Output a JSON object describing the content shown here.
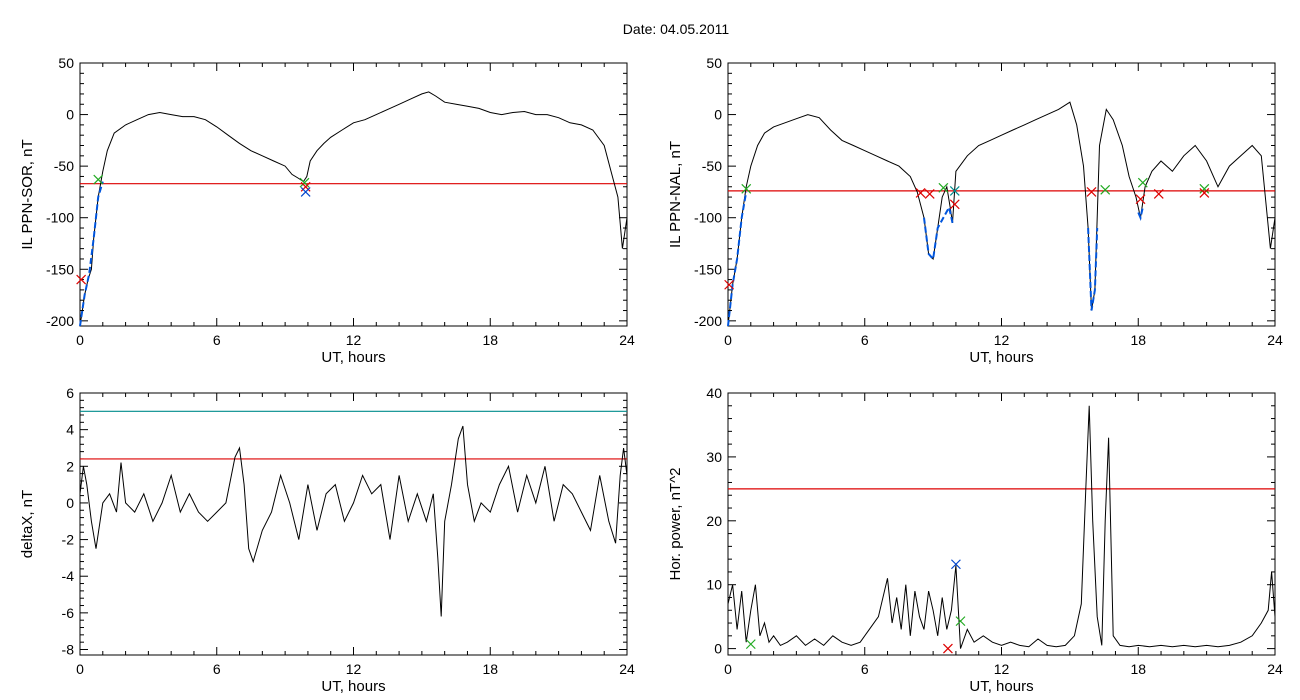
{
  "figure": {
    "title": "Date:  04.05.2011"
  },
  "colors": {
    "trace": "#000000",
    "threshold": "#dd0000",
    "upper_threshold": "#008b8b",
    "highlight": "#0055dd",
    "marker_red": "#dd0000",
    "marker_green": "#22aa22",
    "marker_blue": "#0044cc",
    "marker_teal": "#008b8b"
  },
  "chart_data": [
    {
      "type": "line",
      "xlabel": "UT, hours",
      "ylabel": "IL PPN-SOR, nT",
      "xlim": [
        0,
        24
      ],
      "ylim": [
        -205,
        50
      ],
      "xticks": [
        0,
        6,
        12,
        18,
        24
      ],
      "yticks": [
        -200,
        -150,
        -100,
        -50,
        0,
        50
      ],
      "series": [
        {
          "x": [
            0,
            0.1,
            0.2,
            0.35,
            0.5,
            0.6,
            0.8,
            1.0,
            1.2,
            1.5,
            2.0,
            2.5,
            3.0,
            3.5,
            4.0,
            4.5,
            5.0,
            5.5,
            6.0,
            6.5,
            7.0,
            7.5,
            8.0,
            8.5,
            9.0,
            9.3,
            9.6,
            9.8,
            9.95,
            10.1,
            10.4,
            10.7,
            11.0,
            11.5,
            12.0,
            12.5,
            13.0,
            13.5,
            14.0,
            14.5,
            15.0,
            15.3,
            15.6,
            16.0,
            16.5,
            17.0,
            17.5,
            18.0,
            18.5,
            19.0,
            19.5,
            20.0,
            20.5,
            21.0,
            21.5,
            22.0,
            22.5,
            23.0,
            23.3,
            23.6,
            23.8,
            24.0
          ],
          "y": [
            -205,
            -190,
            -175,
            -160,
            -150,
            -120,
            -80,
            -55,
            -35,
            -18,
            -10,
            -5,
            0,
            2,
            0,
            -2,
            -2,
            -5,
            -12,
            -20,
            -28,
            -35,
            -40,
            -45,
            -50,
            -58,
            -62,
            -65,
            -60,
            -45,
            -35,
            -28,
            -22,
            -15,
            -8,
            -5,
            0,
            5,
            10,
            15,
            20,
            22,
            18,
            12,
            10,
            8,
            6,
            2,
            0,
            2,
            3,
            0,
            0,
            -3,
            -8,
            -10,
            -15,
            -30,
            -55,
            -80,
            -130,
            -100
          ]
        }
      ],
      "highlight": {
        "x": [
          0,
          0.2,
          0.4,
          0.6,
          0.8,
          1.0
        ],
        "y": [
          -205,
          -175,
          -155,
          -120,
          -80,
          -65
        ]
      },
      "threshold": -67,
      "markers": [
        {
          "x": 0.8,
          "y": -63,
          "color": "green"
        },
        {
          "x": 9.85,
          "y": -66,
          "color": "green"
        },
        {
          "x": 9.9,
          "y": -70,
          "color": "red"
        },
        {
          "x": 9.9,
          "y": -75,
          "color": "blue"
        },
        {
          "x": 0.05,
          "y": -160,
          "color": "red"
        }
      ]
    },
    {
      "type": "line",
      "xlabel": "UT, hours",
      "ylabel": "IL PPN-NAL, nT",
      "xlim": [
        0,
        24
      ],
      "ylim": [
        -205,
        50
      ],
      "xticks": [
        0,
        6,
        12,
        18,
        24
      ],
      "yticks": [
        -200,
        -150,
        -100,
        -50,
        0,
        50
      ],
      "series": [
        {
          "x": [
            0,
            0.2,
            0.4,
            0.6,
            0.8,
            1.0,
            1.3,
            1.6,
            2.0,
            2.5,
            3.0,
            3.5,
            4.0,
            4.5,
            5.0,
            5.5,
            6.0,
            6.5,
            7.0,
            7.5,
            8.0,
            8.3,
            8.6,
            8.8,
            9.0,
            9.2,
            9.4,
            9.6,
            9.75,
            9.85,
            10.0,
            10.5,
            11.0,
            11.5,
            12.0,
            12.5,
            13.0,
            13.5,
            14.0,
            14.5,
            15.0,
            15.3,
            15.6,
            15.8,
            15.95,
            16.1,
            16.3,
            16.6,
            16.9,
            17.3,
            17.6,
            17.9,
            18.1,
            18.3,
            18.6,
            19.0,
            19.5,
            20.0,
            20.5,
            21.0,
            21.5,
            22.0,
            22.5,
            23.0,
            23.4,
            23.8,
            24.0
          ],
          "y": [
            -205,
            -165,
            -140,
            -100,
            -70,
            -50,
            -30,
            -18,
            -12,
            -8,
            -4,
            0,
            -3,
            -15,
            -25,
            -30,
            -35,
            -40,
            -45,
            -50,
            -60,
            -75,
            -100,
            -135,
            -140,
            -110,
            -80,
            -70,
            -90,
            -105,
            -55,
            -40,
            -30,
            -25,
            -20,
            -15,
            -10,
            -5,
            0,
            5,
            12,
            -10,
            -50,
            -110,
            -190,
            -170,
            -30,
            5,
            -5,
            -30,
            -60,
            -80,
            -100,
            -70,
            -55,
            -45,
            -55,
            -40,
            -30,
            -45,
            -70,
            -50,
            -40,
            -30,
            -40,
            -130,
            -100
          ]
        }
      ],
      "highlight": {
        "x": [
          0,
          0.2,
          0.4,
          0.6,
          0.8,
          8.6,
          8.8,
          9.0,
          9.2,
          9.7,
          9.8,
          9.85,
          15.8,
          15.95,
          16.1,
          16.2,
          18.0,
          18.1,
          18.2
        ],
        "y": [
          -205,
          -165,
          -140,
          -100,
          -75,
          -100,
          -135,
          -140,
          -110,
          -90,
          -100,
          -105,
          -110,
          -190,
          -170,
          -110,
          -95,
          -100,
          -90
        ]
      },
      "threshold": -74,
      "markers": [
        {
          "x": 0.8,
          "y": -72,
          "color": "green"
        },
        {
          "x": 0.05,
          "y": -165,
          "color": "red"
        },
        {
          "x": 8.45,
          "y": -76,
          "color": "red"
        },
        {
          "x": 8.85,
          "y": -77,
          "color": "red"
        },
        {
          "x": 9.45,
          "y": -71,
          "color": "green"
        },
        {
          "x": 9.95,
          "y": -87,
          "color": "red"
        },
        {
          "x": 9.95,
          "y": -74,
          "color": "teal"
        },
        {
          "x": 15.95,
          "y": -75,
          "color": "red"
        },
        {
          "x": 16.55,
          "y": -73,
          "color": "green"
        },
        {
          "x": 18.1,
          "y": -82,
          "color": "red"
        },
        {
          "x": 18.9,
          "y": -77,
          "color": "red"
        },
        {
          "x": 20.9,
          "y": -72,
          "color": "green"
        },
        {
          "x": 20.9,
          "y": -76,
          "color": "red"
        },
        {
          "x": 18.2,
          "y": -66,
          "color": "green"
        }
      ]
    },
    {
      "type": "line",
      "xlabel": "UT, hours",
      "ylabel": "deltaX, nT",
      "xlim": [
        0,
        24
      ],
      "ylim": [
        -8.3,
        6
      ],
      "xticks": [
        0,
        6,
        12,
        18,
        24
      ],
      "yticks": [
        -8,
        -6,
        -4,
        -2,
        0,
        2,
        4,
        6
      ],
      "series": [
        {
          "x": [
            0,
            0.15,
            0.3,
            0.5,
            0.7,
            1.0,
            1.3,
            1.6,
            1.8,
            2.0,
            2.4,
            2.8,
            3.2,
            3.6,
            4.0,
            4.4,
            4.8,
            5.2,
            5.6,
            6.0,
            6.4,
            6.8,
            7.0,
            7.2,
            7.4,
            7.6,
            8.0,
            8.4,
            8.8,
            9.2,
            9.6,
            10.0,
            10.4,
            10.8,
            11.2,
            11.6,
            12.0,
            12.4,
            12.8,
            13.2,
            13.6,
            14.0,
            14.4,
            14.8,
            15.2,
            15.5,
            15.7,
            15.85,
            16.0,
            16.3,
            16.6,
            16.8,
            17.0,
            17.3,
            17.6,
            18.0,
            18.4,
            18.8,
            19.2,
            19.6,
            20.0,
            20.4,
            20.8,
            21.2,
            21.6,
            22.0,
            22.4,
            22.8,
            23.2,
            23.5,
            23.7,
            23.85,
            24.0
          ],
          "y": [
            0.5,
            2.0,
            1.0,
            -1.0,
            -2.5,
            0.0,
            0.5,
            -0.5,
            2.2,
            0.0,
            -0.5,
            0.5,
            -1.0,
            0.0,
            1.5,
            -0.5,
            0.5,
            -0.5,
            -1.0,
            -0.5,
            0.0,
            2.5,
            3.0,
            1.0,
            -2.5,
            -3.2,
            -1.5,
            -0.5,
            1.5,
            0.0,
            -2.0,
            1.0,
            -1.5,
            0.5,
            1.0,
            -1.0,
            0.0,
            1.5,
            0.5,
            1.0,
            -2.0,
            1.5,
            -1.0,
            0.5,
            -1.0,
            0.5,
            -3.0,
            -6.2,
            -1.0,
            1.0,
            3.5,
            4.2,
            1.0,
            -1.0,
            0.0,
            -0.5,
            1.0,
            2.0,
            -0.5,
            1.5,
            0.0,
            2.0,
            -1.0,
            1.0,
            0.5,
            -0.5,
            -1.5,
            1.5,
            -1.0,
            -2.2,
            1.5,
            3.0,
            1.5
          ]
        }
      ],
      "threshold": 2.4,
      "upper_threshold": 5.0,
      "markers": []
    },
    {
      "type": "line",
      "xlabel": "UT, hours",
      "ylabel": "Hor. power, nT^2",
      "xlim": [
        0,
        24
      ],
      "ylim": [
        -1,
        40
      ],
      "xticks": [
        0,
        6,
        12,
        18,
        24
      ],
      "yticks": [
        0,
        10,
        20,
        30,
        40
      ],
      "series": [
        {
          "x": [
            0,
            0.2,
            0.4,
            0.6,
            0.8,
            1.0,
            1.2,
            1.4,
            1.6,
            1.8,
            2.0,
            2.3,
            2.6,
            3.0,
            3.4,
            3.8,
            4.2,
            4.6,
            5.0,
            5.4,
            5.8,
            6.2,
            6.6,
            7.0,
            7.2,
            7.4,
            7.6,
            7.8,
            8.0,
            8.2,
            8.4,
            8.6,
            8.8,
            9.0,
            9.2,
            9.4,
            9.6,
            9.8,
            10.0,
            10.2,
            10.5,
            10.8,
            11.2,
            11.6,
            12.0,
            12.4,
            12.8,
            13.2,
            13.6,
            14.0,
            14.4,
            14.8,
            15.2,
            15.5,
            15.7,
            15.85,
            16.0,
            16.2,
            16.4,
            16.55,
            16.7,
            16.9,
            17.2,
            17.6,
            18.0,
            18.5,
            19.0,
            19.5,
            20.0,
            20.5,
            21.0,
            21.5,
            22.0,
            22.5,
            23.0,
            23.4,
            23.7,
            23.85,
            24.0
          ],
          "y": [
            7,
            10,
            3,
            9,
            1,
            6,
            10,
            2,
            4,
            1,
            2,
            0.5,
            1,
            2,
            0.5,
            1.5,
            0.5,
            2,
            1,
            0.5,
            1,
            3,
            5,
            11,
            4,
            8,
            3,
            10,
            2,
            9,
            5,
            3,
            9,
            6,
            2,
            8,
            3,
            6,
            13,
            0,
            3,
            1,
            2,
            1,
            0.5,
            1,
            0.5,
            0.3,
            1.5,
            0.5,
            0.3,
            0.5,
            2,
            7,
            25,
            38,
            20,
            5,
            0.5,
            20,
            33,
            2,
            0.5,
            0.3,
            0.5,
            0.3,
            0.5,
            0.3,
            0.5,
            0.3,
            0.5,
            0.3,
            0.5,
            1,
            2,
            4,
            6,
            12,
            5
          ]
        }
      ],
      "threshold": 25,
      "markers": [
        {
          "x": 10.0,
          "y": 13.2,
          "color": "blue"
        },
        {
          "x": 1.0,
          "y": 0.7,
          "color": "green"
        },
        {
          "x": 10.2,
          "y": 4.3,
          "color": "green"
        },
        {
          "x": 9.65,
          "y": 0.0,
          "color": "red"
        }
      ]
    }
  ]
}
